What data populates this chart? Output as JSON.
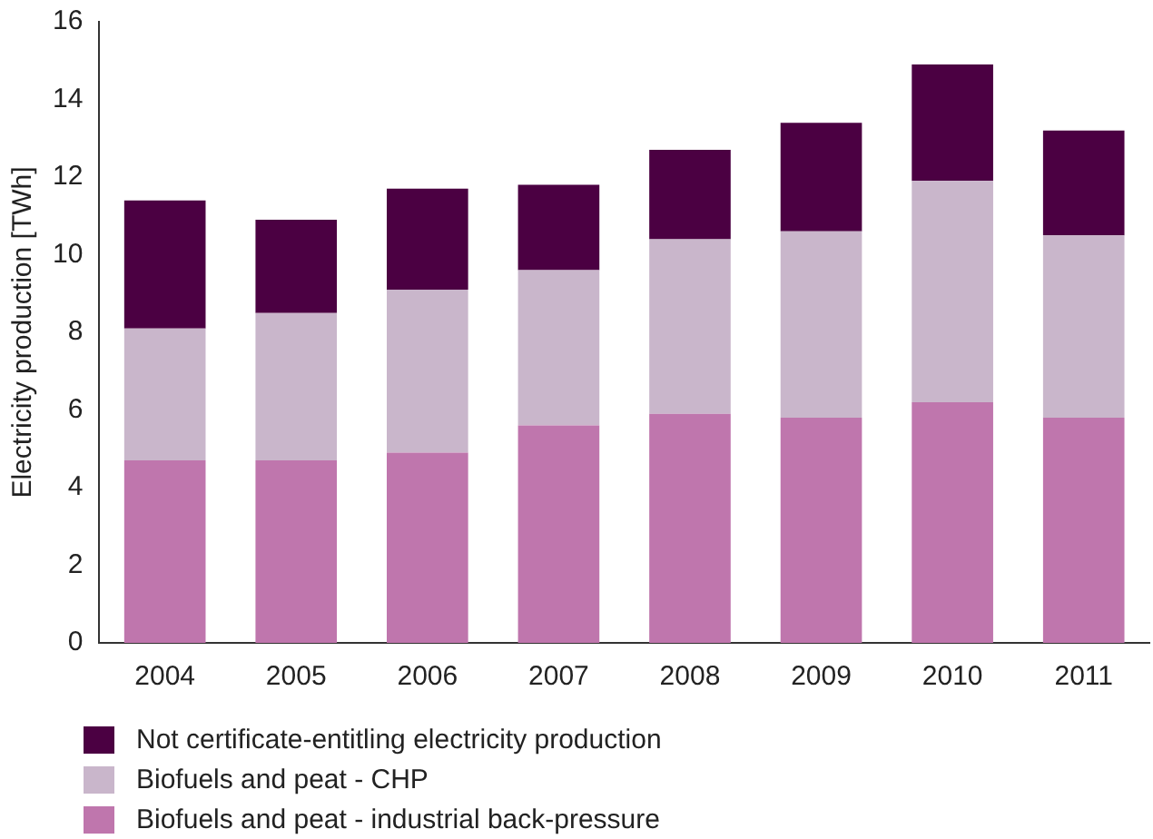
{
  "chart_data": {
    "type": "bar",
    "stacked": true,
    "ylabel": "Electricity production [TWh]",
    "categories": [
      "2004",
      "2005",
      "2006",
      "2007",
      "2008",
      "2009",
      "2010",
      "2011"
    ],
    "series": [
      {
        "name": "Biofuels and peat - industrial back-pressure",
        "color": "#bf76ad",
        "values": [
          4.7,
          4.7,
          4.9,
          5.6,
          5.9,
          5.8,
          6.2,
          5.8
        ]
      },
      {
        "name": "Biofuels and peat - CHP",
        "color": "#c9b6cb",
        "values": [
          3.4,
          3.8,
          4.2,
          4.0,
          4.5,
          4.8,
          5.7,
          4.7
        ]
      },
      {
        "name": "Not certificate-entitling electricity production",
        "color": "#4b0042",
        "values": [
          3.3,
          2.4,
          2.6,
          2.2,
          2.3,
          2.8,
          3.0,
          2.7
        ]
      }
    ],
    "ylim": [
      0,
      16
    ],
    "yticks": [
      0,
      2,
      4,
      6,
      8,
      10,
      12,
      14,
      16
    ],
    "grid": false,
    "legend": "bottom left"
  }
}
